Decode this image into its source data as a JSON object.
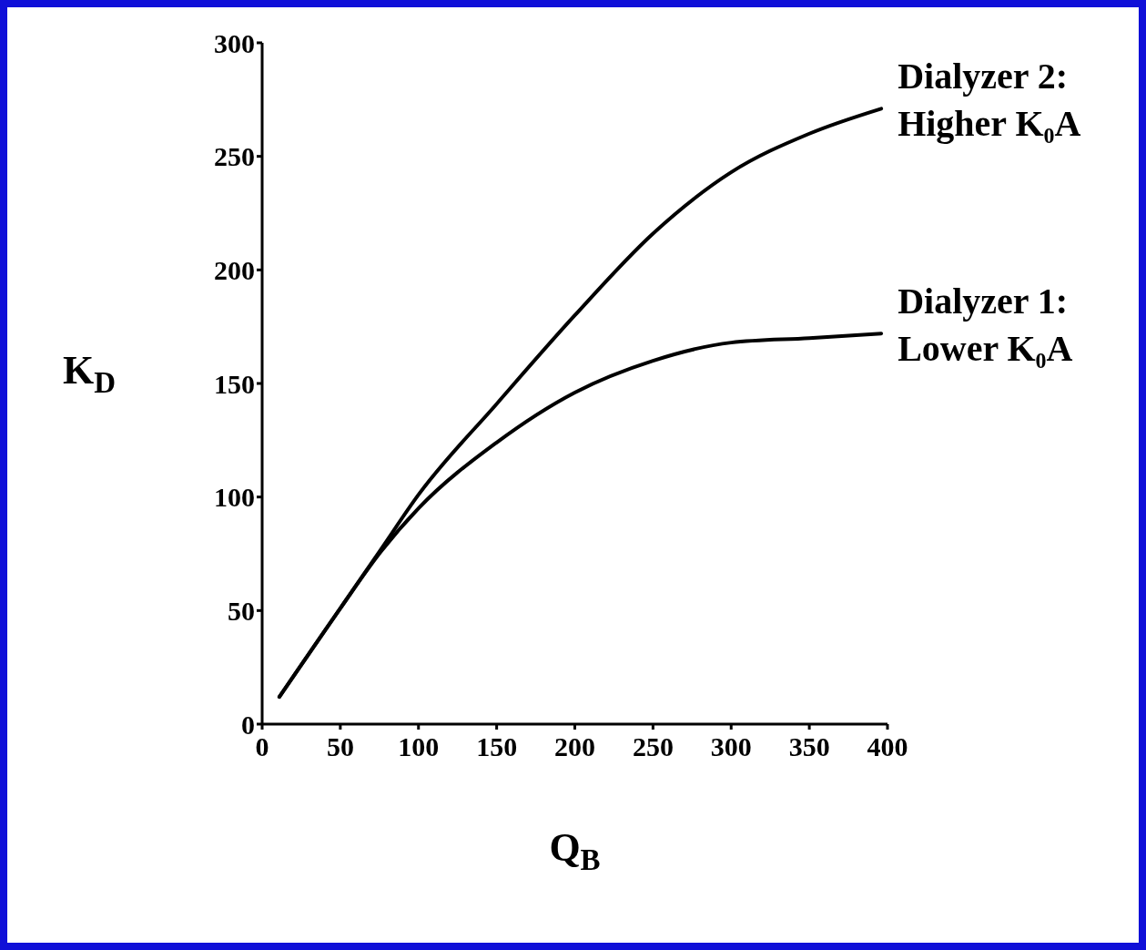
{
  "chart_data": {
    "type": "line",
    "xlabel": "Q$_{B}$",
    "ylabel": "K$_{D}$",
    "xlim": [
      0,
      400
    ],
    "xticks": [
      0,
      50,
      100,
      150,
      200,
      250,
      300,
      350,
      400
    ],
    "ylim": [
      0,
      300
    ],
    "yticks": [
      0,
      50,
      100,
      150,
      200,
      250,
      300
    ],
    "grid": false,
    "legend": false,
    "marker": "none",
    "line_style": "solid",
    "series": [
      {
        "name": "Dialyzer 2: Higher K₀A",
        "color": "#000000",
        "x": [
          11,
          50,
          76,
          100,
          150,
          200,
          250,
          300,
          350,
          396
        ],
        "values": [
          12,
          51,
          77,
          101,
          141,
          180,
          216,
          243,
          260,
          271
        ]
      },
      {
        "name": "Dialyzer 1: Lower K₀A",
        "color": "#000000",
        "x": [
          11,
          50,
          76,
          100,
          150,
          200,
          250,
          300,
          350,
          396
        ],
        "values": [
          12,
          51,
          76,
          95,
          124,
          146,
          160,
          168,
          170,
          172
        ]
      }
    ]
  }
}
